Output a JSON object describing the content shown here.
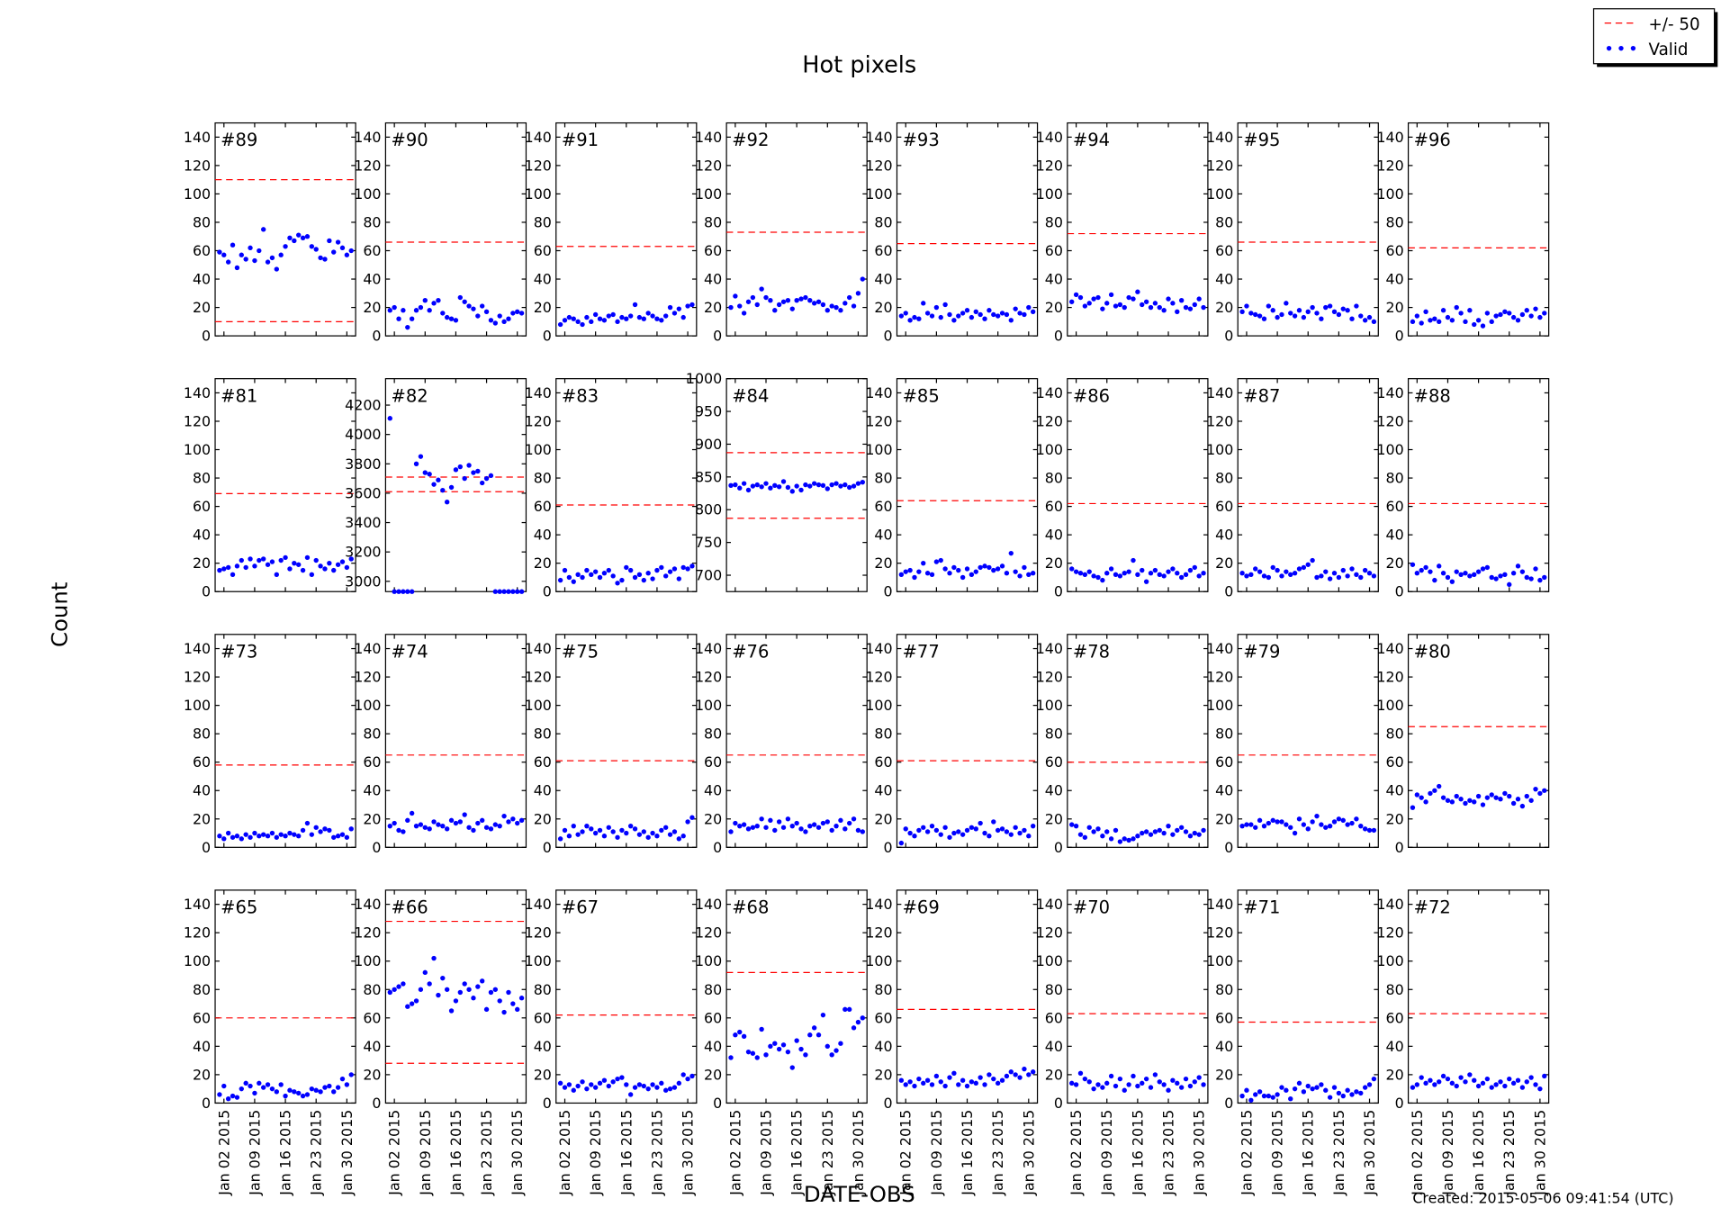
{
  "chart_data": {
    "type": "scatter",
    "title": "Hot pixels",
    "xlabel": "DATE-OBS",
    "ylabel": "Count",
    "footer": "Created: 2015-05-06 09:41:54 (UTC)",
    "legend": [
      {
        "name": "+/- 50",
        "color": "#ff0000"
      },
      {
        "name": "Valid",
        "color": "#0000ff"
      }
    ],
    "legend_position": "upper right",
    "x": [
      "2015-01-01",
      "2015-01-02",
      "2015-01-03",
      "2015-01-04",
      "2015-01-05",
      "2015-01-06",
      "2015-01-07",
      "2015-01-08",
      "2015-01-09",
      "2015-01-10",
      "2015-01-11",
      "2015-01-12",
      "2015-01-13",
      "2015-01-14",
      "2015-01-15",
      "2015-01-16",
      "2015-01-17",
      "2015-01-18",
      "2015-01-19",
      "2015-01-20",
      "2015-01-21",
      "2015-01-22",
      "2015-01-23",
      "2015-01-24",
      "2015-01-25",
      "2015-01-26",
      "2015-01-27",
      "2015-01-28",
      "2015-01-29",
      "2015-01-30",
      "2015-01-31"
    ],
    "xlim": [
      "2014-12-31",
      "2015-02-01"
    ],
    "xticks": [
      {
        "value": "2015-01-02",
        "label": "Jan 02 2015"
      },
      {
        "value": "2015-01-09",
        "label": "Jan 09 2015"
      },
      {
        "value": "2015-01-16",
        "label": "Jan 16 2015"
      },
      {
        "value": "2015-01-23",
        "label": "Jan 23 2015"
      },
      {
        "value": "2015-01-30",
        "label": "Jan 30 2015"
      }
    ],
    "ylim": [
      0,
      150
    ],
    "yticks": [
      0,
      20,
      40,
      60,
      80,
      100,
      120,
      140
    ],
    "panels": [
      {
        "label": "#89",
        "limits": [
          10,
          110
        ],
        "values": [
          59,
          57,
          52,
          64,
          48,
          57,
          54,
          62,
          53,
          60,
          75,
          52,
          55,
          47,
          57,
          63,
          69,
          67,
          71,
          69,
          70,
          63,
          61,
          55,
          54,
          67,
          59,
          66,
          62,
          57,
          60
        ]
      },
      {
        "label": "#90",
        "limits": [
          66
        ],
        "values": [
          18,
          20,
          12,
          18,
          6,
          12,
          18,
          20,
          25,
          18,
          23,
          25,
          16,
          13,
          12,
          11,
          27,
          24,
          21,
          19,
          14,
          21,
          17,
          11,
          9,
          14,
          10,
          12,
          16,
          17,
          16
        ]
      },
      {
        "label": "#91",
        "limits": [
          63
        ],
        "values": [
          8,
          11,
          13,
          12,
          10,
          8,
          13,
          10,
          15,
          12,
          11,
          14,
          15,
          10,
          13,
          12,
          14,
          22,
          13,
          12,
          16,
          14,
          12,
          11,
          14,
          20,
          16,
          19,
          13,
          21,
          22
        ]
      },
      {
        "label": "#92",
        "limits": [
          73
        ],
        "values": [
          20,
          28,
          21,
          16,
          24,
          27,
          22,
          33,
          27,
          25,
          18,
          22,
          24,
          25,
          19,
          25,
          26,
          27,
          25,
          23,
          24,
          22,
          18,
          21,
          20,
          18,
          23,
          27,
          21,
          30,
          40
        ]
      },
      {
        "label": "#93",
        "limits": [
          65
        ],
        "values": [
          14,
          16,
          11,
          13,
          12,
          23,
          16,
          14,
          20,
          13,
          22,
          15,
          11,
          14,
          16,
          18,
          13,
          17,
          15,
          12,
          18,
          15,
          14,
          16,
          15,
          11,
          19,
          16,
          15,
          20,
          17
        ]
      },
      {
        "label": "#94",
        "limits": [
          72
        ],
        "values": [
          24,
          29,
          27,
          21,
          23,
          26,
          27,
          19,
          23,
          29,
          21,
          22,
          20,
          27,
          26,
          31,
          22,
          24,
          20,
          23,
          20,
          18,
          26,
          23,
          17,
          25,
          20,
          19,
          22,
          26,
          20
        ]
      },
      {
        "label": "#95",
        "limits": [
          66
        ],
        "values": [
          17,
          21,
          16,
          15,
          14,
          12,
          21,
          18,
          13,
          15,
          23,
          16,
          14,
          18,
          13,
          17,
          20,
          16,
          12,
          20,
          21,
          17,
          15,
          19,
          18,
          12,
          21,
          14,
          11,
          13,
          10
        ]
      },
      {
        "label": "#96",
        "limits": [
          62
        ],
        "values": [
          10,
          14,
          9,
          17,
          11,
          12,
          10,
          18,
          13,
          11,
          20,
          16,
          10,
          18,
          8,
          11,
          7,
          16,
          10,
          14,
          15,
          17,
          16,
          13,
          11,
          15,
          18,
          14,
          19,
          13,
          16
        ]
      },
      {
        "label": "#81",
        "limits": [
          69
        ],
        "values": [
          15,
          16,
          17,
          12,
          18,
          22,
          17,
          23,
          18,
          22,
          23,
          19,
          21,
          12,
          22,
          24,
          16,
          20,
          19,
          15,
          24,
          12,
          22,
          18,
          16,
          20,
          15,
          19,
          21,
          17,
          23
        ]
      },
      {
        "label": "#82",
        "limits": [
          3610,
          3710
        ],
        "ylim": [
          2930,
          4380
        ],
        "yticks": [
          3000,
          3200,
          3400,
          3600,
          3800,
          4000,
          4200
        ],
        "values": [
          4110,
          2930,
          2930,
          2930,
          2930,
          2930,
          3800,
          3850,
          3740,
          3730,
          3660,
          3690,
          3620,
          3540,
          3640,
          3760,
          3780,
          3700,
          3790,
          3740,
          3750,
          3670,
          3700,
          3720,
          2930,
          2930,
          2930,
          2930,
          2930,
          2930,
          2930
        ]
      },
      {
        "label": "#83",
        "limits": [
          61
        ],
        "values": [
          8,
          15,
          10,
          7,
          12,
          10,
          15,
          12,
          14,
          10,
          13,
          15,
          11,
          6,
          8,
          17,
          15,
          10,
          12,
          8,
          13,
          9,
          15,
          17,
          11,
          14,
          16,
          9,
          17,
          16,
          18
        ]
      },
      {
        "label": "#84",
        "limits": [
          787,
          887
        ],
        "ylim": [
          675,
          1000
        ],
        "yticks": [
          700,
          750,
          800,
          850,
          900,
          950,
          1000
        ],
        "values": [
          837,
          838,
          833,
          840,
          830,
          836,
          838,
          835,
          840,
          833,
          837,
          835,
          843,
          834,
          828,
          836,
          830,
          838,
          836,
          840,
          838,
          837,
          832,
          838,
          840,
          836,
          838,
          834,
          836,
          840,
          842
        ]
      },
      {
        "label": "#85",
        "limits": [
          64
        ],
        "values": [
          12,
          14,
          15,
          10,
          14,
          20,
          13,
          12,
          21,
          22,
          16,
          13,
          17,
          15,
          10,
          16,
          12,
          14,
          17,
          18,
          17,
          15,
          16,
          18,
          13,
          27,
          14,
          11,
          17,
          12,
          13
        ]
      },
      {
        "label": "#86",
        "limits": [
          62
        ],
        "values": [
          16,
          14,
          13,
          12,
          14,
          11,
          10,
          8,
          13,
          16,
          12,
          11,
          13,
          14,
          22,
          12,
          15,
          7,
          13,
          15,
          12,
          11,
          14,
          16,
          13,
          10,
          12,
          15,
          17,
          11,
          13
        ]
      },
      {
        "label": "#87",
        "limits": [
          62
        ],
        "values": [
          13,
          11,
          12,
          16,
          14,
          11,
          10,
          17,
          15,
          11,
          14,
          12,
          13,
          16,
          17,
          19,
          22,
          10,
          11,
          14,
          9,
          13,
          10,
          15,
          11,
          16,
          12,
          10,
          15,
          13,
          11
        ]
      },
      {
        "label": "#88",
        "limits": [
          62
        ],
        "values": [
          19,
          13,
          15,
          17,
          14,
          8,
          18,
          13,
          10,
          7,
          14,
          12,
          13,
          11,
          12,
          14,
          16,
          17,
          10,
          9,
          11,
          12,
          5,
          13,
          18,
          14,
          10,
          9,
          16,
          8,
          10
        ]
      },
      {
        "label": "#73",
        "limits": [
          58
        ],
        "values": [
          8,
          6,
          10,
          7,
          8,
          6,
          9,
          7,
          10,
          8,
          9,
          8,
          10,
          7,
          9,
          8,
          10,
          9,
          8,
          12,
          17,
          9,
          14,
          11,
          13,
          12,
          7,
          8,
          9,
          7,
          13
        ]
      },
      {
        "label": "#74",
        "limits": [
          65
        ],
        "values": [
          15,
          17,
          12,
          11,
          19,
          24,
          15,
          16,
          14,
          13,
          18,
          16,
          15,
          13,
          19,
          17,
          18,
          23,
          14,
          12,
          17,
          19,
          14,
          13,
          16,
          15,
          22,
          18,
          20,
          17,
          19
        ]
      },
      {
        "label": "#75",
        "limits": [
          61
        ],
        "values": [
          6,
          12,
          8,
          15,
          9,
          11,
          15,
          13,
          10,
          12,
          8,
          14,
          11,
          7,
          12,
          10,
          15,
          13,
          9,
          11,
          7,
          10,
          8,
          12,
          14,
          9,
          11,
          6,
          8,
          18,
          21
        ]
      },
      {
        "label": "#76",
        "limits": [
          65
        ],
        "values": [
          11,
          17,
          15,
          16,
          13,
          14,
          15,
          20,
          14,
          19,
          12,
          18,
          14,
          20,
          15,
          17,
          13,
          11,
          15,
          16,
          14,
          17,
          18,
          12,
          15,
          19,
          13,
          17,
          20,
          12,
          11
        ]
      },
      {
        "label": "#77",
        "limits": [
          61
        ],
        "values": [
          3,
          13,
          10,
          8,
          12,
          14,
          11,
          15,
          12,
          9,
          14,
          7,
          10,
          11,
          9,
          12,
          14,
          13,
          17,
          10,
          8,
          18,
          12,
          13,
          11,
          9,
          14,
          10,
          12,
          8,
          15
        ]
      },
      {
        "label": "#78",
        "limits": [
          60
        ],
        "values": [
          16,
          15,
          9,
          7,
          14,
          11,
          13,
          8,
          11,
          6,
          12,
          4,
          6,
          5,
          6,
          8,
          10,
          11,
          9,
          11,
          12,
          10,
          15,
          9,
          12,
          14,
          11,
          8,
          10,
          9,
          12
        ]
      },
      {
        "label": "#79",
        "limits": [
          65
        ],
        "values": [
          15,
          16,
          16,
          14,
          19,
          15,
          17,
          19,
          18,
          18,
          16,
          14,
          10,
          20,
          16,
          13,
          18,
          22,
          16,
          14,
          15,
          18,
          20,
          19,
          16,
          17,
          20,
          15,
          13,
          12,
          12
        ]
      },
      {
        "label": "#80",
        "limits": [
          85
        ],
        "values": [
          28,
          37,
          35,
          32,
          38,
          40,
          43,
          35,
          33,
          32,
          36,
          34,
          31,
          33,
          32,
          36,
          30,
          35,
          37,
          35,
          34,
          38,
          36,
          31,
          34,
          29,
          36,
          33,
          41,
          38,
          40
        ]
      },
      {
        "label": "#65",
        "limits": [
          60
        ],
        "values": [
          6,
          12,
          3,
          5,
          4,
          10,
          14,
          12,
          7,
          14,
          11,
          13,
          10,
          8,
          13,
          5,
          9,
          8,
          7,
          5,
          6,
          10,
          9,
          8,
          11,
          12,
          8,
          11,
          17,
          13,
          20
        ]
      },
      {
        "label": "#66",
        "limits": [
          28,
          128
        ],
        "values": [
          78,
          80,
          82,
          84,
          68,
          70,
          72,
          80,
          92,
          84,
          102,
          76,
          88,
          80,
          65,
          72,
          78,
          84,
          80,
          74,
          82,
          86,
          66,
          78,
          80,
          72,
          64,
          78,
          70,
          66,
          74
        ]
      },
      {
        "label": "#67",
        "limits": [
          62
        ],
        "values": [
          14,
          11,
          13,
          9,
          12,
          15,
          10,
          13,
          11,
          14,
          16,
          12,
          15,
          17,
          18,
          13,
          6,
          11,
          13,
          12,
          10,
          13,
          11,
          14,
          9,
          10,
          11,
          14,
          20,
          17,
          19
        ]
      },
      {
        "label": "#68",
        "limits": [
          92
        ],
        "values": [
          32,
          48,
          50,
          47,
          36,
          35,
          32,
          52,
          34,
          40,
          42,
          38,
          41,
          36,
          25,
          44,
          38,
          34,
          48,
          53,
          48,
          62,
          40,
          34,
          37,
          42,
          66,
          66,
          53,
          57,
          60
        ]
      },
      {
        "label": "#69",
        "limits": [
          66
        ],
        "values": [
          16,
          13,
          15,
          12,
          17,
          14,
          16,
          13,
          19,
          15,
          12,
          18,
          21,
          13,
          16,
          12,
          15,
          14,
          18,
          13,
          20,
          17,
          14,
          16,
          19,
          22,
          20,
          18,
          24,
          20,
          22
        ]
      },
      {
        "label": "#70",
        "limits": [
          63
        ],
        "values": [
          14,
          13,
          21,
          17,
          15,
          10,
          13,
          11,
          14,
          19,
          12,
          17,
          9,
          13,
          19,
          12,
          14,
          17,
          11,
          20,
          15,
          13,
          9,
          16,
          14,
          11,
          17,
          12,
          15,
          18,
          13
        ]
      },
      {
        "label": "#71",
        "limits": [
          57
        ],
        "values": [
          5,
          9,
          2,
          6,
          8,
          5,
          5,
          4,
          6,
          11,
          9,
          3,
          10,
          14,
          8,
          12,
          10,
          11,
          13,
          9,
          4,
          11,
          7,
          5,
          9,
          6,
          8,
          7,
          11,
          13,
          17
        ]
      },
      {
        "label": "#72",
        "limits": [
          63
        ],
        "values": [
          11,
          13,
          18,
          14,
          16,
          13,
          15,
          19,
          17,
          14,
          12,
          18,
          15,
          20,
          16,
          12,
          14,
          17,
          11,
          13,
          15,
          12,
          17,
          14,
          16,
          11,
          15,
          18,
          13,
          10,
          19
        ]
      }
    ]
  }
}
